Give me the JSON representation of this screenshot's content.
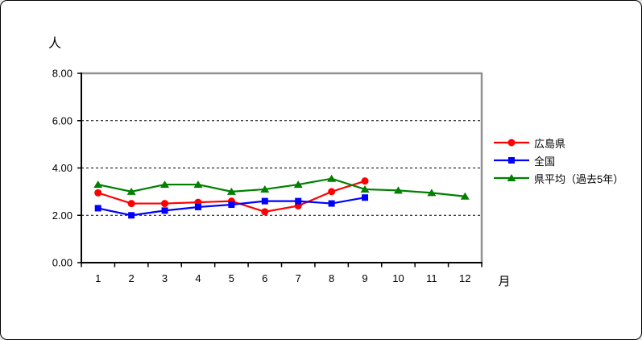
{
  "chart_data": {
    "type": "line",
    "title": "",
    "x": [
      1,
      2,
      3,
      4,
      5,
      6,
      7,
      8,
      9,
      10,
      11,
      12
    ],
    "xlabel": "月",
    "ylabel": "人",
    "ylim": [
      0,
      8
    ],
    "yticks": [
      0,
      2,
      4,
      6,
      8
    ],
    "ytick_labels": [
      "0.00",
      "2.00",
      "4.00",
      "6.00",
      "8.00"
    ],
    "xtick_labels": [
      "1",
      "2",
      "3",
      "4",
      "5",
      "6",
      "7",
      "8",
      "9",
      "10",
      "11",
      "12"
    ],
    "grid": "horizontal-dashed",
    "legend_position": "right",
    "series": [
      {
        "name": "広島県",
        "color": "#ff0000",
        "marker": "circle",
        "values": [
          2.95,
          2.5,
          2.5,
          2.55,
          2.6,
          2.15,
          2.4,
          3.0,
          3.45,
          null,
          null,
          null
        ]
      },
      {
        "name": "全国",
        "color": "#0000ff",
        "marker": "square",
        "values": [
          2.3,
          2.0,
          2.2,
          2.35,
          2.45,
          2.6,
          2.6,
          2.5,
          2.75,
          null,
          null,
          null
        ]
      },
      {
        "name": "県平均（過去5年）",
        "color": "#008000",
        "marker": "triangle",
        "values": [
          3.3,
          3.0,
          3.3,
          3.3,
          3.0,
          3.1,
          3.3,
          3.55,
          3.1,
          3.05,
          2.95,
          2.8
        ]
      }
    ]
  },
  "colors": {
    "axis": "#000000",
    "plot_border": "#909090",
    "gridline": "#000000",
    "background": "#ffffff"
  }
}
